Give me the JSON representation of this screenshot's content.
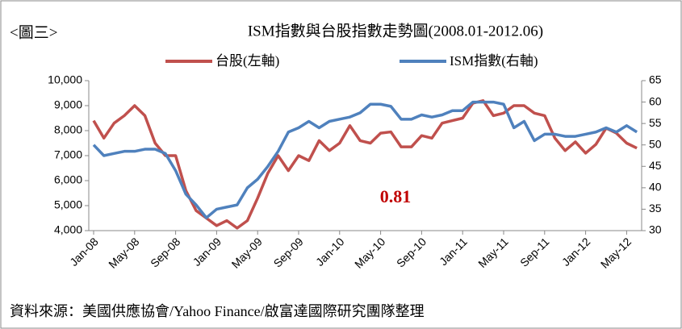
{
  "chart_data": {
    "type": "line",
    "label": "<圖三>",
    "title": "ISM指數與台股指數走勢圖(2008.01-2012.06)",
    "categories": [
      "Jan-08",
      null,
      null,
      null,
      "May-08",
      null,
      null,
      null,
      "Sep-08",
      null,
      null,
      null,
      "Jan-09",
      null,
      null,
      null,
      "May-09",
      null,
      null,
      null,
      "Sep-09",
      null,
      null,
      null,
      "Jan-10",
      null,
      null,
      null,
      "May-10",
      null,
      null,
      null,
      "Sep-10",
      null,
      null,
      null,
      "Jan-11",
      null,
      null,
      null,
      "May-11",
      null,
      null,
      null,
      "Sep-11",
      null,
      null,
      null,
      "Jan-12",
      null,
      null,
      null,
      "May-12",
      null
    ],
    "series": [
      {
        "name": "台股(左軸)",
        "color": "#c0504d",
        "axis": "y",
        "values": [
          8400,
          7700,
          8300,
          8600,
          9000,
          8600,
          7500,
          7000,
          7000,
          5600,
          4800,
          4500,
          4200,
          4400,
          4100,
          4400,
          5300,
          6300,
          7000,
          6400,
          7000,
          6800,
          7600,
          7200,
          7500,
          8200,
          7600,
          7500,
          7900,
          7950,
          7350,
          7350,
          7800,
          7700,
          8300,
          8400,
          8500,
          9100,
          9200,
          8600,
          8700,
          9000,
          9000,
          8700,
          8600,
          7700,
          7200,
          7550,
          7100,
          7450,
          8100,
          7900,
          7500,
          7300
        ]
      },
      {
        "name": "ISM指數(右軸)",
        "color": "#4f81bd",
        "axis": "y2",
        "values": [
          50,
          47.5,
          48,
          48.5,
          48.5,
          49,
          49,
          48,
          44,
          38.5,
          36,
          33,
          35,
          35.5,
          36,
          40,
          42,
          45,
          48.5,
          53,
          54,
          55.5,
          54,
          55.5,
          56,
          56.5,
          57.5,
          59.5,
          59.5,
          59,
          56,
          56,
          57,
          56.5,
          57,
          58,
          58,
          60,
          60,
          60,
          59.5,
          54,
          55.5,
          51,
          52.5,
          52.5,
          52,
          52,
          52.5,
          53,
          54,
          53,
          54.5,
          53
        ]
      }
    ],
    "ylim": [
      4000,
      10000
    ],
    "yticks": [
      {
        "value": 4000,
        "label": "4,000"
      },
      {
        "value": 5000,
        "label": "5,000"
      },
      {
        "value": 6000,
        "label": "6,000"
      },
      {
        "value": 7000,
        "label": "7,000"
      },
      {
        "value": 8000,
        "label": "8,000"
      },
      {
        "value": 9000,
        "label": "9,000"
      },
      {
        "value": 10000,
        "label": "10,000"
      }
    ],
    "y2lim": [
      30,
      65
    ],
    "y2ticks": [
      30,
      35,
      40,
      45,
      50,
      55,
      60,
      65
    ],
    "annotation": "0.81",
    "annotation_color": "#c00000",
    "source": "資料來源：美國供應協會/Yahoo Finance/啟富達國際研究團隊整理"
  }
}
